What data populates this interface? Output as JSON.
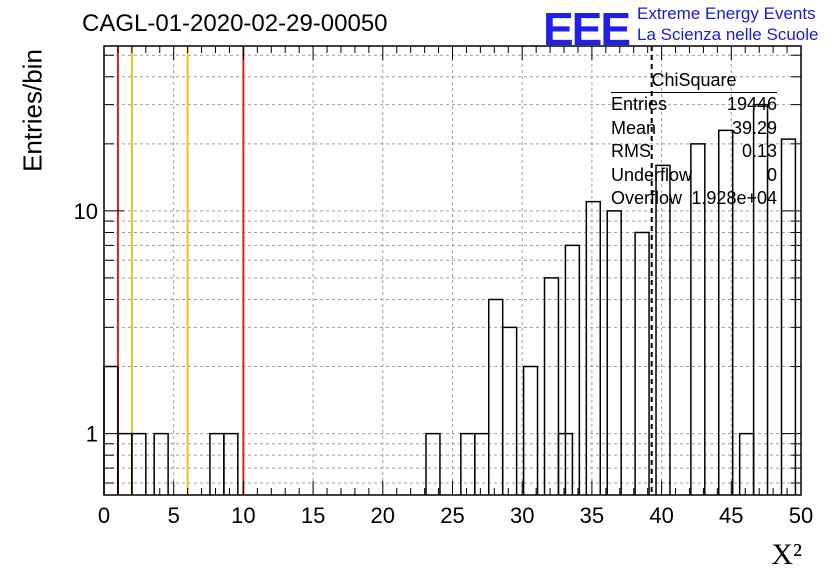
{
  "chart_data": {
    "type": "bar",
    "title": "CAGL-01-2020-02-29-00050",
    "xlabel": "X²",
    "ylabel": "Entries/bin",
    "xlim": [
      0,
      50
    ],
    "ylim": [
      0.53,
      55
    ],
    "yscale": "log",
    "grid": true,
    "bin_width": 1,
    "x_ticks": [
      "0",
      "5",
      "10",
      "15",
      "20",
      "25",
      "30",
      "35",
      "40",
      "45",
      "50"
    ],
    "y_ticks": [
      "1",
      "10"
    ],
    "bins": [
      {
        "x": 0,
        "value": 2
      },
      {
        "x": 1,
        "value": 1
      },
      {
        "x": 2,
        "value": 1
      },
      {
        "x": 3.6,
        "value": 1
      },
      {
        "x": 7.6,
        "value": 1
      },
      {
        "x": 8.6,
        "value": 1
      },
      {
        "x": 23.1,
        "value": 1
      },
      {
        "x": 25.6,
        "value": 1
      },
      {
        "x": 26.6,
        "value": 1
      },
      {
        "x": 27.6,
        "value": 4
      },
      {
        "x": 28.6,
        "value": 3
      },
      {
        "x": 30.1,
        "value": 2
      },
      {
        "x": 31.6,
        "value": 5
      },
      {
        "x": 32.6,
        "value": 1
      },
      {
        "x": 33.1,
        "value": 7
      },
      {
        "x": 34.6,
        "value": 11
      },
      {
        "x": 36.1,
        "value": 10
      },
      {
        "x": 38.1,
        "value": 8
      },
      {
        "x": 39.6,
        "value": 16
      },
      {
        "x": 42.1,
        "value": 20
      },
      {
        "x": 44.1,
        "value": 23
      },
      {
        "x": 45.6,
        "value": 1
      },
      {
        "x": 46.6,
        "value": 30
      },
      {
        "x": 48.6,
        "value": 21
      }
    ],
    "vertical_lines": [
      {
        "x": 1,
        "color": "#e02020"
      },
      {
        "x": 2,
        "color": "#f0c020"
      },
      {
        "x": 6,
        "color": "#f0c020"
      },
      {
        "x": 10,
        "color": "#e02020"
      }
    ],
    "mean_line_x": 39.29
  },
  "logo": {
    "mark": "EEE",
    "line1": "Extreme Energy Events",
    "line2": "La Scienza nelle Scuole"
  },
  "stats": {
    "title": "ChiSquare",
    "rows": [
      {
        "label": "Entries",
        "value": "19446"
      },
      {
        "label": "Mean",
        "value": "39.29"
      },
      {
        "label": "RMS",
        "value": "0.13"
      },
      {
        "label": "Underflow",
        "value": "0"
      },
      {
        "label": "Overflow",
        "value": "1.928e+04"
      }
    ]
  }
}
